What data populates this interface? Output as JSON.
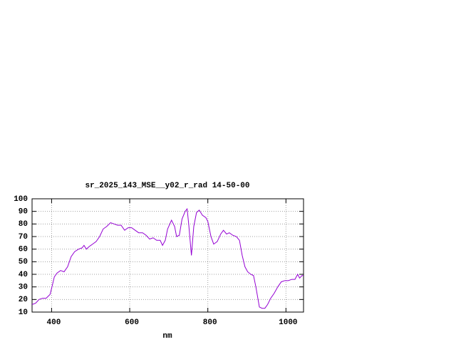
{
  "chart_data": {
    "type": "line",
    "title": "sr_2025_143_MSE__y02_r_rad 14-50-00",
    "xlabel": "nm",
    "color": "#9400d3",
    "x": [
      350,
      359,
      368,
      377,
      386,
      396,
      401,
      407,
      414,
      423,
      432,
      441,
      450,
      459,
      469,
      478,
      483,
      489,
      496,
      505,
      514,
      523,
      532,
      541,
      551,
      560,
      569,
      578,
      587,
      596,
      605,
      614,
      623,
      633,
      642,
      651,
      660,
      669,
      678,
      684,
      691,
      697,
      707,
      715,
      720,
      727,
      734,
      742,
      747,
      751,
      758,
      764,
      771,
      778,
      786,
      795,
      800,
      808,
      815,
      824,
      833,
      840,
      848,
      855,
      864,
      873,
      881,
      888,
      895,
      902,
      910,
      917,
      923,
      932,
      939,
      946,
      953,
      961,
      970,
      979,
      988,
      997,
      1006,
      1015,
      1023,
      1030,
      1035,
      1041,
      1045
    ],
    "values": [
      16,
      17,
      20,
      21,
      21,
      24,
      30,
      38,
      41,
      43,
      42,
      46,
      54,
      58,
      60,
      61,
      63,
      60,
      62,
      64,
      66,
      70,
      76,
      78,
      81,
      80,
      79,
      79,
      75,
      77,
      77,
      75,
      73,
      73,
      71,
      68,
      69,
      67,
      67,
      63,
      67,
      76,
      83,
      78,
      70,
      71,
      84,
      90,
      92,
      80,
      55,
      78,
      89,
      91,
      87,
      85,
      82,
      70,
      64,
      66,
      72,
      75,
      72,
      73,
      71,
      70,
      67,
      55,
      46,
      42,
      40,
      39,
      30,
      14,
      13,
      13,
      16,
      21,
      25,
      30,
      34,
      35,
      35,
      36,
      36,
      40,
      37,
      39,
      39
    ],
    "xlim": [
      350,
      1045
    ],
    "ylim": [
      10,
      100
    ],
    "xticks": [
      400,
      600,
      800,
      1000
    ],
    "yticks": [
      10,
      20,
      30,
      40,
      50,
      60,
      70,
      80,
      90,
      100
    ],
    "grid": true
  }
}
